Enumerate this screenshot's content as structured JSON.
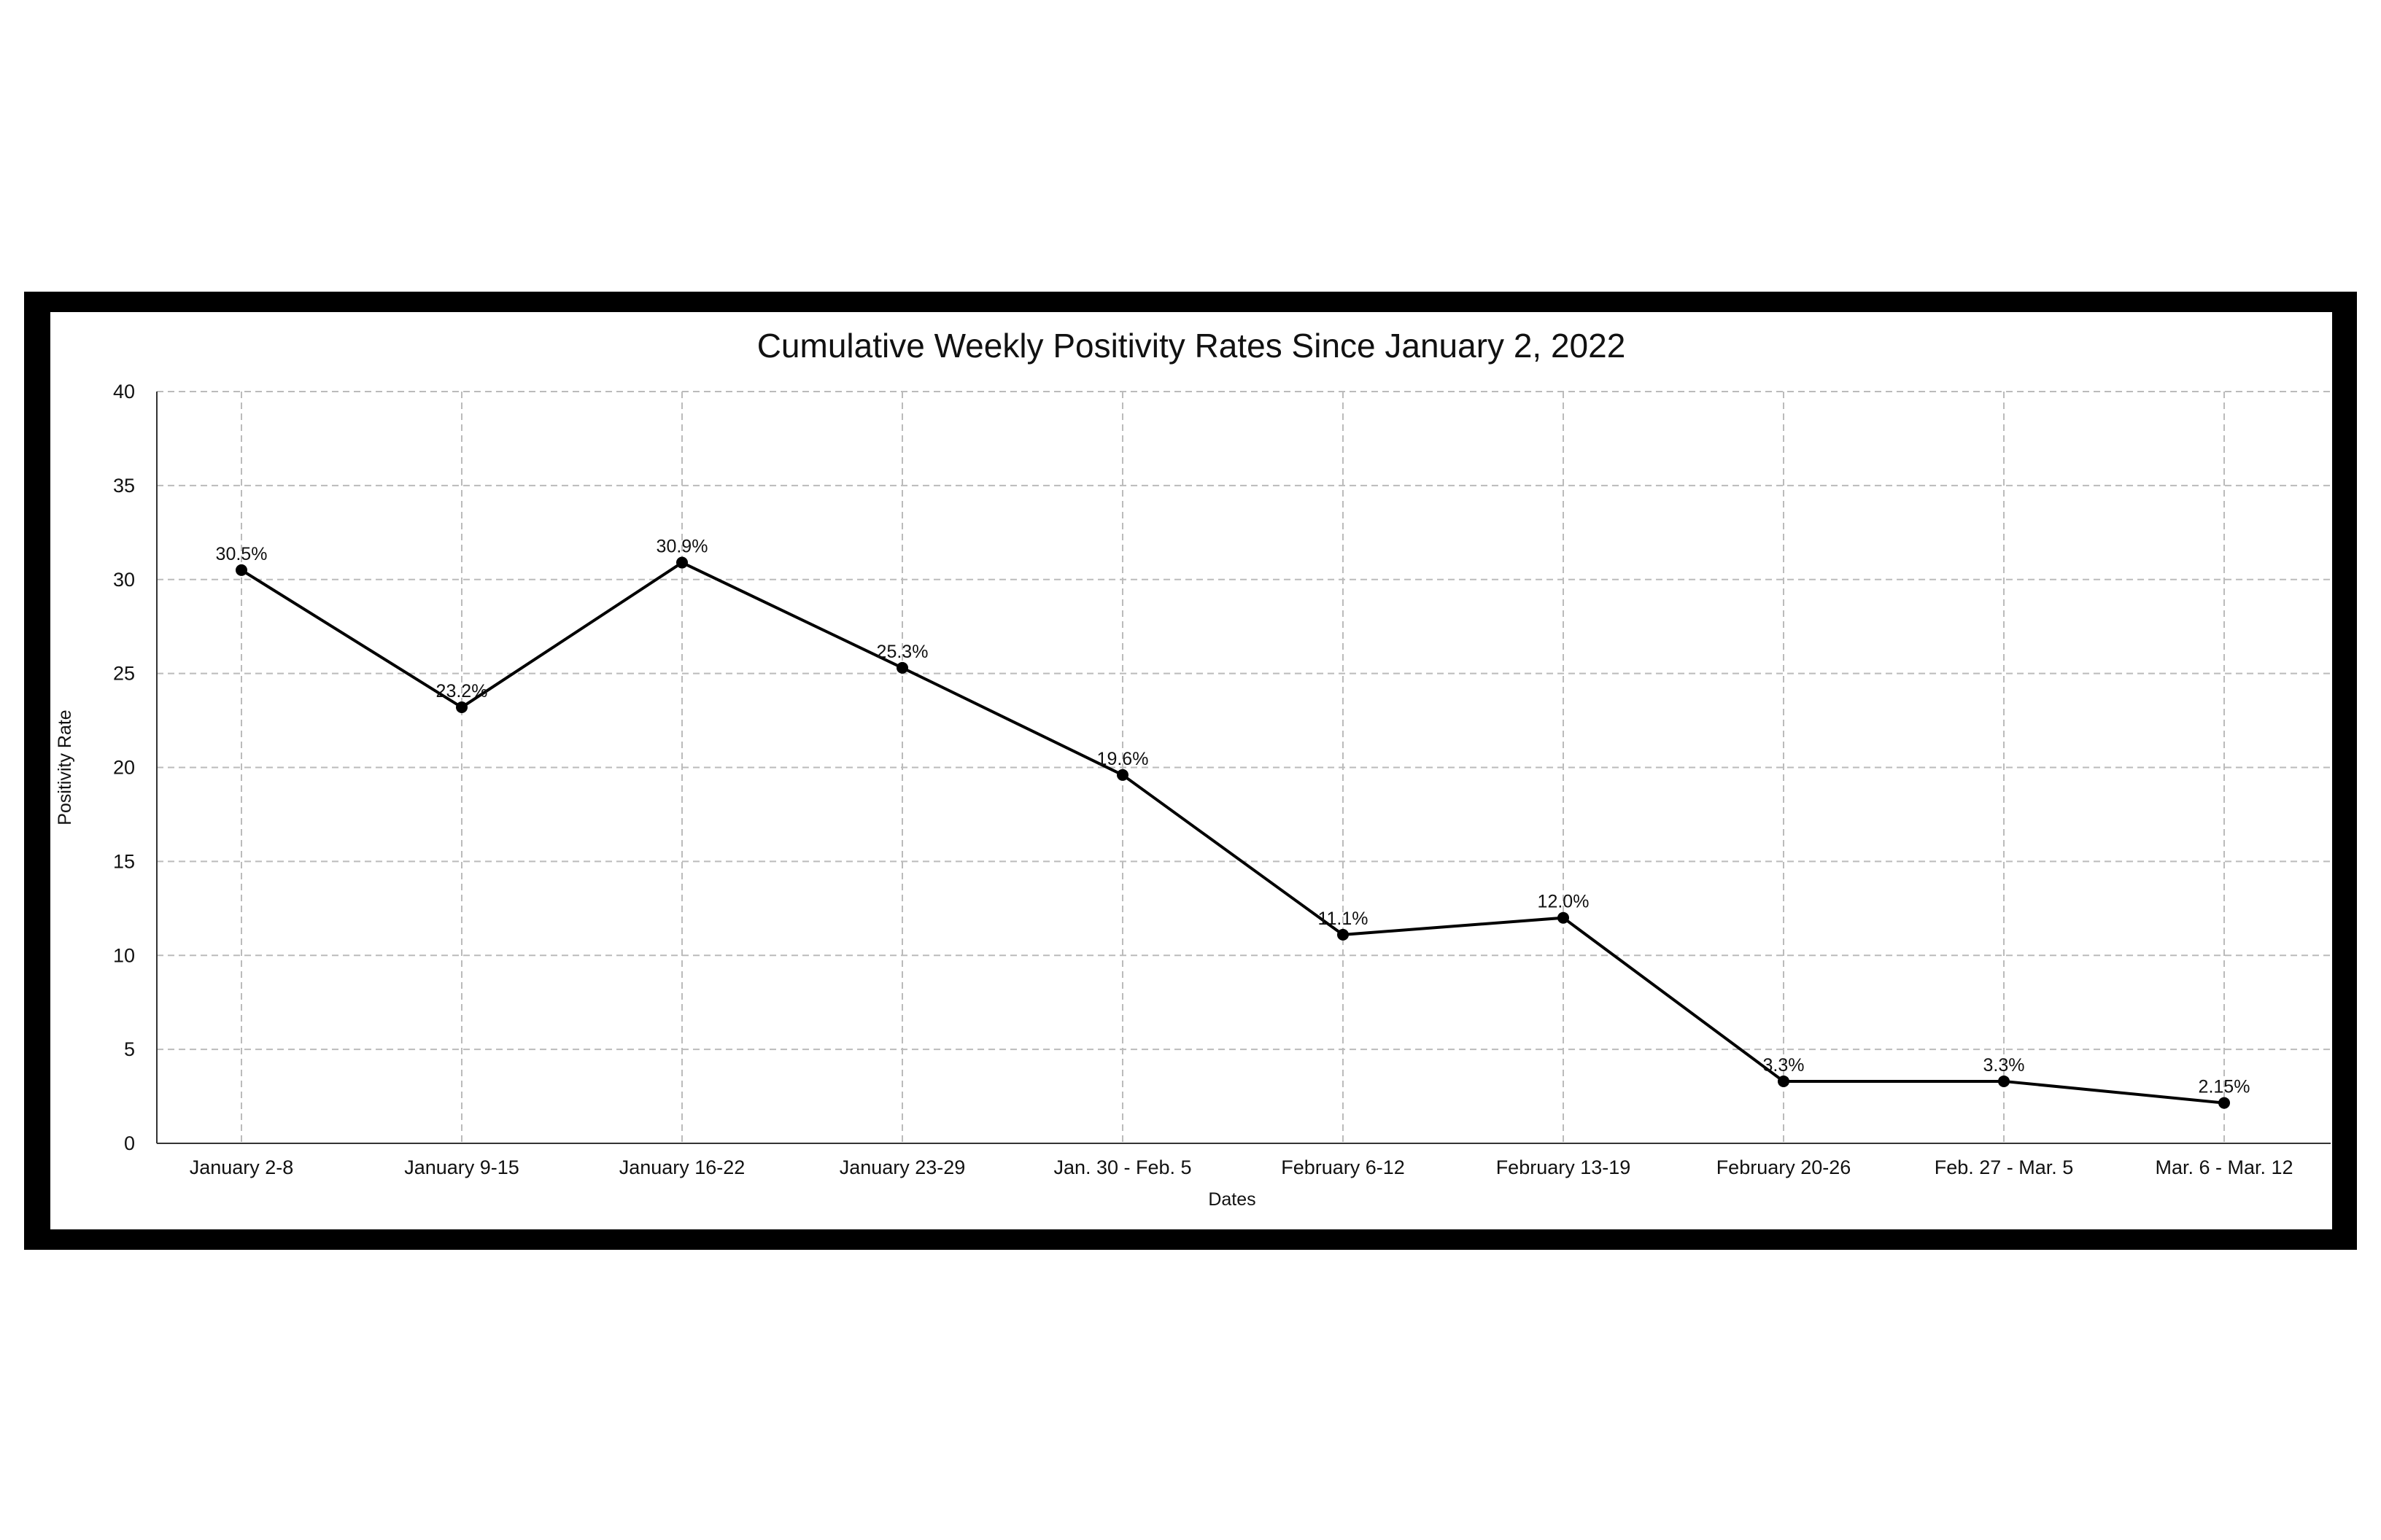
{
  "chart_data": {
    "type": "line",
    "title": "Cumulative Weekly Positivity Rates Since January 2, 2022",
    "xlabel": "Dates",
    "ylabel": "Positivity Rate",
    "categories": [
      "January 2-8",
      "January 9-15",
      "January 16-22",
      "January 23-29",
      "Jan. 30 - Feb. 5",
      "February 6-12",
      "February 13-19",
      "February 20-26",
      "Feb. 27 - Mar. 5",
      "Mar. 6 - Mar. 12"
    ],
    "values": [
      30.5,
      23.2,
      30.9,
      25.3,
      19.6,
      11.1,
      12.0,
      3.3,
      3.3,
      2.15
    ],
    "data_labels": [
      "30.5%",
      "23.2%",
      "30.9%",
      "25.3%",
      "19.6%",
      "11.1%",
      "12.0%",
      "3.3%",
      "3.3%",
      "2.15%"
    ],
    "ylim": [
      0,
      40
    ],
    "yticks": [
      "0",
      "5",
      "10",
      "15",
      "20",
      "25",
      "30",
      "35",
      "40"
    ],
    "grid": true,
    "colors": {
      "line": "#000000",
      "marker": "#000000",
      "grid": "#bbbbbb",
      "frame": "#000000"
    }
  }
}
